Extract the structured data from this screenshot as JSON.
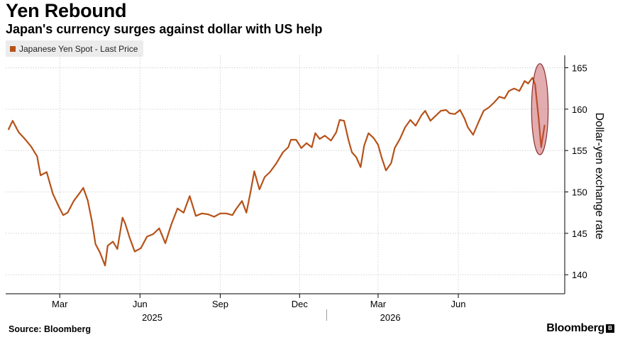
{
  "header": {
    "title": "Yen Rebound",
    "subtitle": "Japan's currency surges against dollar with US help"
  },
  "footer": {
    "source": "Source: Bloomberg",
    "brand": "Bloomberg",
    "brand_badge": "B"
  },
  "chart_data": {
    "type": "line",
    "title": "Yen Rebound",
    "subtitle": "Japan's currency surges against dollar with US help",
    "ylabel": "Dollar-yen exchange rate",
    "xlabel": "",
    "ylim": [
      137.7,
      166.5
    ],
    "yticks": [
      140,
      145,
      150,
      155,
      160,
      165
    ],
    "x_month_ticks": [
      "Mar",
      "Jun",
      "Sep",
      "Dec",
      "Mar",
      "Jun"
    ],
    "x_year_labels": [
      "2025",
      "2026"
    ],
    "legend": {
      "entries": [
        "Japanese Yen Spot - Last Price"
      ],
      "position": "top-left"
    },
    "grid": true,
    "color": "#b65219",
    "highlight_color": "#c0484b",
    "series": [
      {
        "name": "Japanese Yen Spot - Last Price",
        "points": [
          [
            "2025-01-01",
            157.5
          ],
          [
            "2025-01-06",
            158.6
          ],
          [
            "2025-01-13",
            157.2
          ],
          [
            "2025-01-20",
            156.4
          ],
          [
            "2025-01-27",
            155.5
          ],
          [
            "2025-02-03",
            154.3
          ],
          [
            "2025-02-07",
            152.0
          ],
          [
            "2025-02-14",
            152.4
          ],
          [
            "2025-02-21",
            149.8
          ],
          [
            "2025-02-28",
            148.2
          ],
          [
            "2025-03-05",
            147.2
          ],
          [
            "2025-03-10",
            147.5
          ],
          [
            "2025-03-17",
            148.9
          ],
          [
            "2025-03-24",
            149.9
          ],
          [
            "2025-03-28",
            150.5
          ],
          [
            "2025-04-02",
            149.0
          ],
          [
            "2025-04-07",
            146.4
          ],
          [
            "2025-04-11",
            143.7
          ],
          [
            "2025-04-16",
            142.7
          ],
          [
            "2025-04-22",
            141.1
          ],
          [
            "2025-04-25",
            143.5
          ],
          [
            "2025-05-01",
            144.0
          ],
          [
            "2025-05-06",
            143.1
          ],
          [
            "2025-05-12",
            146.9
          ],
          [
            "2025-05-15",
            146.2
          ],
          [
            "2025-05-20",
            144.5
          ],
          [
            "2025-05-26",
            142.8
          ],
          [
            "2025-06-02",
            143.2
          ],
          [
            "2025-06-09",
            144.6
          ],
          [
            "2025-06-16",
            144.9
          ],
          [
            "2025-06-23",
            145.6
          ],
          [
            "2025-06-30",
            143.8
          ],
          [
            "2025-07-07",
            146.1
          ],
          [
            "2025-07-14",
            148.0
          ],
          [
            "2025-07-21",
            147.5
          ],
          [
            "2025-07-28",
            149.5
          ],
          [
            "2025-08-04",
            147.1
          ],
          [
            "2025-08-11",
            147.4
          ],
          [
            "2025-08-18",
            147.3
          ],
          [
            "2025-08-25",
            147.0
          ],
          [
            "2025-09-01",
            147.4
          ],
          [
            "2025-09-08",
            147.4
          ],
          [
            "2025-09-15",
            147.2
          ],
          [
            "2025-09-19",
            147.9
          ],
          [
            "2025-09-26",
            148.9
          ],
          [
            "2025-10-01",
            147.5
          ],
          [
            "2025-10-06",
            150.1
          ],
          [
            "2025-10-10",
            152.5
          ],
          [
            "2025-10-16",
            150.3
          ],
          [
            "2025-10-22",
            151.8
          ],
          [
            "2025-10-28",
            152.4
          ],
          [
            "2025-11-04",
            153.4
          ],
          [
            "2025-11-12",
            154.8
          ],
          [
            "2025-11-18",
            155.4
          ],
          [
            "2025-11-21",
            156.3
          ],
          [
            "2025-11-27",
            156.3
          ],
          [
            "2025-12-03",
            155.3
          ],
          [
            "2025-12-09",
            155.9
          ],
          [
            "2025-12-15",
            155.4
          ],
          [
            "2025-12-19",
            157.1
          ],
          [
            "2025-12-24",
            156.4
          ],
          [
            "2025-12-30",
            156.8
          ],
          [
            "2026-01-06",
            156.2
          ],
          [
            "2026-01-12",
            157.2
          ],
          [
            "2026-01-16",
            158.7
          ],
          [
            "2026-01-21",
            158.6
          ],
          [
            "2026-01-26",
            156.3
          ],
          [
            "2026-01-30",
            154.8
          ],
          [
            "2026-02-04",
            154.2
          ],
          [
            "2026-02-09",
            153.0
          ],
          [
            "2026-02-13",
            155.6
          ],
          [
            "2026-02-18",
            157.1
          ],
          [
            "2026-02-24",
            156.5
          ],
          [
            "2026-03-01",
            155.7
          ],
          [
            "2026-03-05",
            154.2
          ],
          [
            "2026-03-10",
            152.6
          ],
          [
            "2026-03-16",
            153.5
          ],
          [
            "2026-03-20",
            155.3
          ],
          [
            "2026-03-26",
            156.4
          ],
          [
            "2026-04-01",
            157.8
          ],
          [
            "2026-04-07",
            158.7
          ],
          [
            "2026-04-13",
            158.0
          ],
          [
            "2026-04-20",
            159.3
          ],
          [
            "2026-04-24",
            159.8
          ],
          [
            "2026-04-30",
            158.6
          ],
          [
            "2026-05-06",
            159.2
          ],
          [
            "2026-05-12",
            159.8
          ],
          [
            "2026-05-18",
            159.9
          ],
          [
            "2026-05-22",
            159.5
          ],
          [
            "2026-05-28",
            159.4
          ],
          [
            "2026-06-03",
            159.9
          ],
          [
            "2026-06-08",
            158.9
          ],
          [
            "2026-06-12",
            157.8
          ],
          [
            "2026-06-18",
            156.9
          ],
          [
            "2026-06-24",
            158.4
          ],
          [
            "2026-06-30",
            159.8
          ],
          [
            "2026-07-06",
            160.2
          ],
          [
            "2026-07-12",
            160.8
          ],
          [
            "2026-07-18",
            161.5
          ],
          [
            "2026-07-24",
            161.3
          ],
          [
            "2026-07-29",
            162.2
          ],
          [
            "2026-08-04",
            162.5
          ],
          [
            "2026-08-10",
            162.2
          ],
          [
            "2026-08-16",
            163.4
          ],
          [
            "2026-08-20",
            163.1
          ],
          [
            "2026-08-25",
            163.8
          ],
          [
            "2026-08-28",
            163.0
          ],
          [
            "2026-09-01",
            159.0
          ],
          [
            "2026-09-04",
            155.4
          ],
          [
            "2026-09-08",
            158.1
          ]
        ]
      }
    ],
    "annotations": [
      {
        "type": "ellipse",
        "x_from": "2026-08-24",
        "x_to": "2026-09-12",
        "y_from": 154.5,
        "y_to": 165.5
      }
    ]
  }
}
